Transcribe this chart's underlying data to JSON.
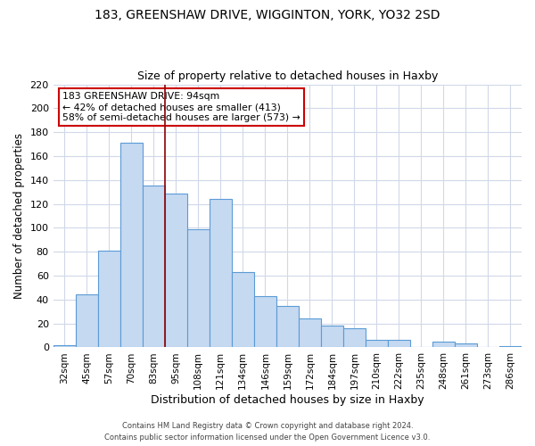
{
  "title_line1": "183, GREENSHAW DRIVE, WIGGINTON, YORK, YO32 2SD",
  "title_line2": "Size of property relative to detached houses in Haxby",
  "xlabel": "Distribution of detached houses by size in Haxby",
  "ylabel": "Number of detached properties",
  "bin_labels": [
    "32sqm",
    "45sqm",
    "57sqm",
    "70sqm",
    "83sqm",
    "95sqm",
    "108sqm",
    "121sqm",
    "134sqm",
    "146sqm",
    "159sqm",
    "172sqm",
    "184sqm",
    "197sqm",
    "210sqm",
    "222sqm",
    "235sqm",
    "248sqm",
    "261sqm",
    "273sqm",
    "286sqm"
  ],
  "bar_values": [
    2,
    44,
    81,
    171,
    135,
    129,
    99,
    124,
    63,
    43,
    35,
    24,
    18,
    16,
    6,
    6,
    0,
    5,
    3,
    0,
    1
  ],
  "bar_color": "#c5d9f1",
  "bar_edge_color": "#5b9bd5",
  "vline_pos": 4.5,
  "vline_color": "#8b0000",
  "annotation_title": "183 GREENSHAW DRIVE: 94sqm",
  "annotation_line1": "← 42% of detached houses are smaller (413)",
  "annotation_line2": "58% of semi-detached houses are larger (573) →",
  "annotation_box_color": "#ffffff",
  "annotation_box_edge": "#cc0000",
  "ylim": [
    0,
    220
  ],
  "yticks": [
    0,
    20,
    40,
    60,
    80,
    100,
    120,
    140,
    160,
    180,
    200,
    220
  ],
  "footnote1": "Contains HM Land Registry data © Crown copyright and database right 2024.",
  "footnote2": "Contains public sector information licensed under the Open Government Licence v3.0.",
  "bg_color": "#ffffff",
  "grid_color": "#d0d8e8"
}
